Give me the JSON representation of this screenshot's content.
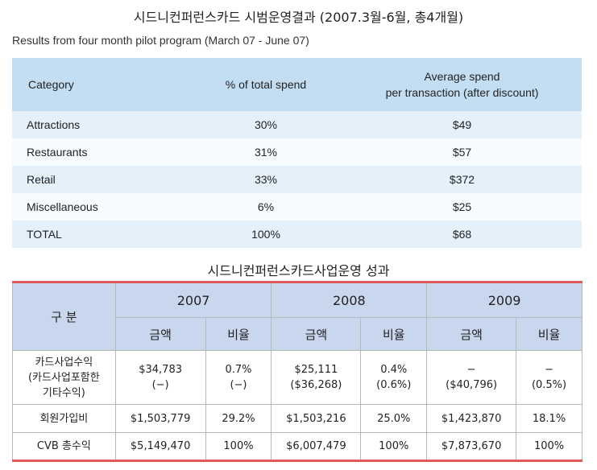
{
  "title_korean": "시드니컨퍼런스카드 시범운영결과 (2007.3월-6월, 총4개월)",
  "subtitle_english": "Results from four month pilot program (March 07 - June 07)",
  "pilot_table": {
    "headers": {
      "category": "Category",
      "percent": "% of total spend",
      "avg_line1": "Average spend",
      "avg_line2": "per transaction (after discount)"
    },
    "rows": [
      {
        "category": "Attractions",
        "percent": "30%",
        "avg": "$49"
      },
      {
        "category": "Restaurants",
        "percent": "31%",
        "avg": "$57"
      },
      {
        "category": "Retail",
        "percent": "33%",
        "avg": "$372"
      },
      {
        "category": "Miscellaneous",
        "percent": "6%",
        "avg": "$25"
      },
      {
        "category": "TOTAL",
        "percent": "100%",
        "avg": "$68"
      }
    ]
  },
  "title_business": "시드니컨퍼런스카드사업운영 성과",
  "business_table": {
    "category_header": "구 분",
    "years": [
      "2007",
      "2008",
      "2009"
    ],
    "sub_amount": "금액",
    "sub_ratio": "비율",
    "row1": {
      "label_lines": [
        "카드사업수익",
        "(카드사업포함한",
        "기타수익)"
      ],
      "y2007_amount": [
        "$34,783",
        "(−)"
      ],
      "y2007_ratio": [
        "0.7%",
        "(−)"
      ],
      "y2008_amount": [
        "$25,111",
        "($36,268)"
      ],
      "y2008_ratio": [
        "0.4%",
        "(0.6%)"
      ],
      "y2009_amount": [
        "−",
        "($40,796)"
      ],
      "y2009_ratio": [
        "−",
        "(0.5%)"
      ]
    },
    "row2": {
      "label": "회원가입비",
      "values": [
        "$1,503,779",
        "29.2%",
        "$1,503,216",
        "25.0%",
        "$1,423,870",
        "18.1%"
      ]
    },
    "row3": {
      "label": "CVB 총수익",
      "values": [
        "$5,149,470",
        "100%",
        "$6,007,479",
        "100%",
        "$7,873,670",
        "100%"
      ]
    }
  }
}
